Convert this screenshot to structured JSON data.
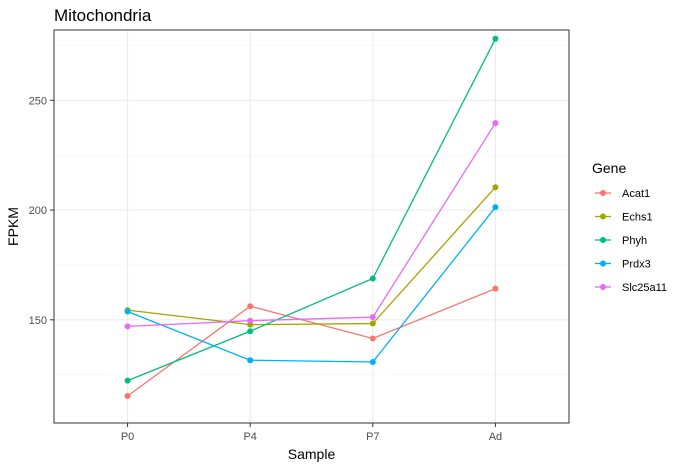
{
  "chart_data": {
    "type": "line",
    "title": "Mitochondria",
    "xlabel": "Sample",
    "ylabel": "FPKM",
    "categories": [
      "P0",
      "P4",
      "P7",
      "Ad"
    ],
    "ylim": [
      103,
      282
    ],
    "yticks": [
      150,
      200,
      250
    ],
    "grid": true,
    "legend": {
      "title": "Gene",
      "position": "right"
    },
    "series": [
      {
        "name": "Acat1",
        "color": "#F8766D",
        "values": [
          115.3,
          156.2,
          141.5,
          164.2
        ]
      },
      {
        "name": "Echs1",
        "color": "#A3A500",
        "values": [
          154.4,
          147.8,
          148.3,
          210.4
        ]
      },
      {
        "name": "Phyh",
        "color": "#00BF7D",
        "values": [
          122.3,
          144.8,
          168.8,
          278.0
        ]
      },
      {
        "name": "Prdx3",
        "color": "#00B0F6",
        "values": [
          153.8,
          131.6,
          130.8,
          201.3
        ]
      },
      {
        "name": "Slc25a11",
        "color": "#E76BF3",
        "values": [
          147.0,
          149.6,
          151.2,
          239.6
        ]
      }
    ]
  }
}
